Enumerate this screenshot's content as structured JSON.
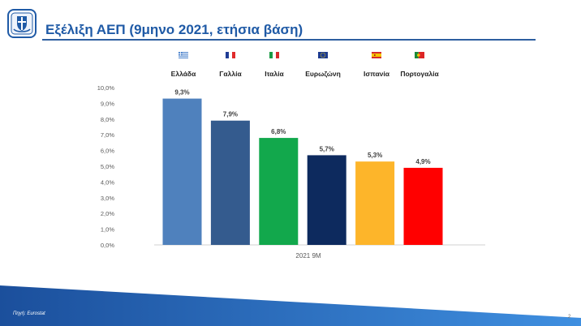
{
  "slide": {
    "title": "Εξέλιξη ΑΕΠ (9μηνο 2021, ετήσια βάση)",
    "source": "Πηγή: Eurostat",
    "page_number": "2"
  },
  "chart_data": {
    "type": "bar",
    "categories": [
      "Ελλάδα",
      "Γαλλία",
      "Ιταλία",
      "Ευρωζώνη",
      "Ισπανία",
      "Πορτογαλία"
    ],
    "values": [
      9.3,
      7.9,
      6.8,
      5.7,
      5.3,
      4.9
    ],
    "data_labels": [
      "9,3%",
      "7,9%",
      "6,8%",
      "5,7%",
      "5,3%",
      "4,9%"
    ],
    "bar_colors": [
      "#4f81bd",
      "#345b8e",
      "#12a84c",
      "#0d2a5e",
      "#fdb52a",
      "#ff0000"
    ],
    "flags": [
      "flag-greece",
      "flag-france",
      "flag-italy",
      "flag-eu",
      "flag-spain",
      "flag-portugal"
    ],
    "x_category": "2021 9M",
    "ylim": [
      0,
      10
    ],
    "ytick_values": [
      0,
      1,
      2,
      3,
      4,
      5,
      6,
      7,
      8,
      9,
      10
    ],
    "ytick_labels": [
      "0,0%",
      "1,0%",
      "2,0%",
      "3,0%",
      "4,0%",
      "5,0%",
      "6,0%",
      "7,0%",
      "8,0%",
      "9,0%",
      "10,0%"
    ],
    "grid": false,
    "legend_position": "top"
  }
}
